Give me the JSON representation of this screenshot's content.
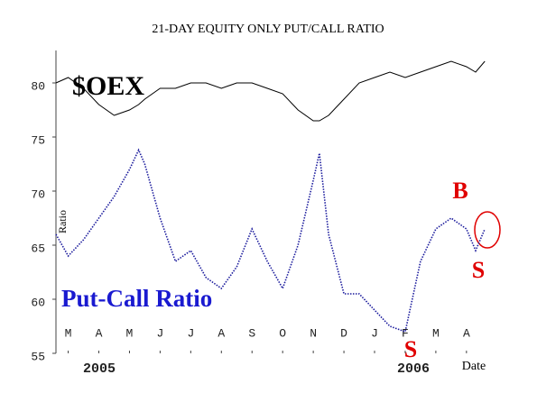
{
  "chart_data": {
    "type": "line",
    "title": "21-DAY EQUITY ONLY PUT/CALL RATIO",
    "y_label": "Ratio",
    "x_label": "Date",
    "year_labels": [
      "2005",
      "2006"
    ],
    "annotations": [
      "B",
      "S",
      "S"
    ],
    "x": [
      -0.4,
      0,
      0.5,
      1,
      1.5,
      2,
      2.3,
      2.5,
      3,
      3.5,
      4,
      4.5,
      5,
      5.5,
      6,
      6.5,
      7,
      7.5,
      8,
      8.2,
      8.5,
      9,
      9.5,
      10,
      10.5,
      11,
      11.5,
      12,
      12.5,
      13,
      13.3,
      13.6
    ],
    "series": [
      {
        "name": "$OEX",
        "color": "#000000",
        "values": [
          80,
          80.5,
          79.5,
          78,
          77,
          77.5,
          78,
          78.5,
          79.5,
          79.5,
          80,
          80,
          79.5,
          80,
          80,
          79.5,
          79,
          77.5,
          76.5,
          76.5,
          77,
          78.5,
          80,
          80.5,
          81,
          80.5,
          81,
          81.5,
          82,
          81.5,
          81,
          82
        ]
      },
      {
        "name": "Put-Call Ratio",
        "color": "#1a1a9c",
        "values": [
          66,
          64,
          65.5,
          67.5,
          69.5,
          72,
          73.8,
          72.5,
          67.5,
          63.5,
          64.5,
          62,
          61,
          63,
          66.5,
          63.5,
          61,
          65,
          71,
          73.5,
          66,
          60.5,
          60.5,
          59,
          57.5,
          57,
          63.5,
          66.5,
          67.5,
          66.5,
          64.5,
          66.5
        ]
      }
    ],
    "xlim": [
      -0.4,
      13.8
    ],
    "xticks": [
      {
        "value": 0,
        "label": "M"
      },
      {
        "value": 1,
        "label": "A"
      },
      {
        "value": 2,
        "label": "M"
      },
      {
        "value": 3,
        "label": "J"
      },
      {
        "value": 4,
        "label": "J"
      },
      {
        "value": 5,
        "label": "A"
      },
      {
        "value": 6,
        "label": "S"
      },
      {
        "value": 7,
        "label": "O"
      },
      {
        "value": 8,
        "label": "N"
      },
      {
        "value": 9,
        "label": "D"
      },
      {
        "value": 10,
        "label": "J"
      },
      {
        "value": 11,
        "label": "F"
      },
      {
        "value": 12,
        "label": "M"
      },
      {
        "value": 13,
        "label": "A"
      }
    ],
    "ylim": [
      55,
      83
    ],
    "yticks": [
      55,
      60,
      65,
      70,
      75,
      80
    ],
    "grid": false
  }
}
